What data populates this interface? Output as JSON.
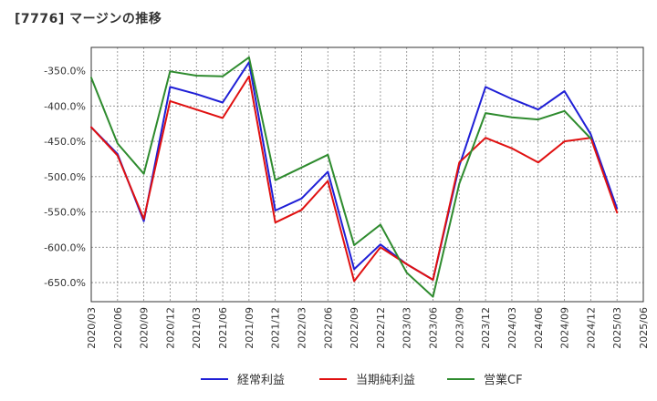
{
  "chart_data": {
    "type": "line",
    "title": "[7776]  マージンの推移",
    "xlabel": "",
    "ylabel": "",
    "ylim": [
      -677,
      -317
    ],
    "yticks": [
      -350,
      -400,
      -450,
      -500,
      -550,
      -600,
      -650
    ],
    "ytick_labels": [
      "-350.0%",
      "-400.0%",
      "-450.0%",
      "-500.0%",
      "-550.0%",
      "-600.0%",
      "-650.0%"
    ],
    "categories": [
      "2020/03",
      "2020/06",
      "2020/09",
      "2020/12",
      "2021/03",
      "2021/06",
      "2021/09",
      "2021/12",
      "2022/03",
      "2022/06",
      "2022/09",
      "2022/12",
      "2023/03",
      "2023/06",
      "2023/09",
      "2023/12",
      "2024/03",
      "2024/06",
      "2024/09",
      "2024/12",
      "2025/03",
      "2025/06"
    ],
    "grid": true,
    "legend_position": "bottom",
    "series": [
      {
        "name": "経常利益",
        "color": "#1f1fd6",
        "values": [
          -430,
          -468,
          -563,
          -373,
          -383,
          -395,
          -338,
          -548,
          -531,
          -493,
          -631,
          -596,
          -624,
          -646,
          -485,
          -373,
          -390,
          -405,
          -379,
          -440,
          -545,
          null
        ]
      },
      {
        "name": "当期純利益",
        "color": "#e01010",
        "values": [
          -430,
          -470,
          -560,
          -393,
          -405,
          -417,
          -358,
          -565,
          -547,
          -506,
          -648,
          -600,
          -624,
          -646,
          -480,
          -445,
          -460,
          -480,
          -450,
          -445,
          -551,
          null
        ]
      },
      {
        "name": "営業CF",
        "color": "#2e8b2e",
        "values": [
          -360,
          -453,
          -496,
          -351,
          -357,
          -358,
          -331,
          -505,
          -487,
          -469,
          -597,
          -568,
          -636,
          -670,
          -510,
          -410,
          -416,
          -419,
          -407,
          -446,
          null,
          null
        ]
      }
    ]
  }
}
